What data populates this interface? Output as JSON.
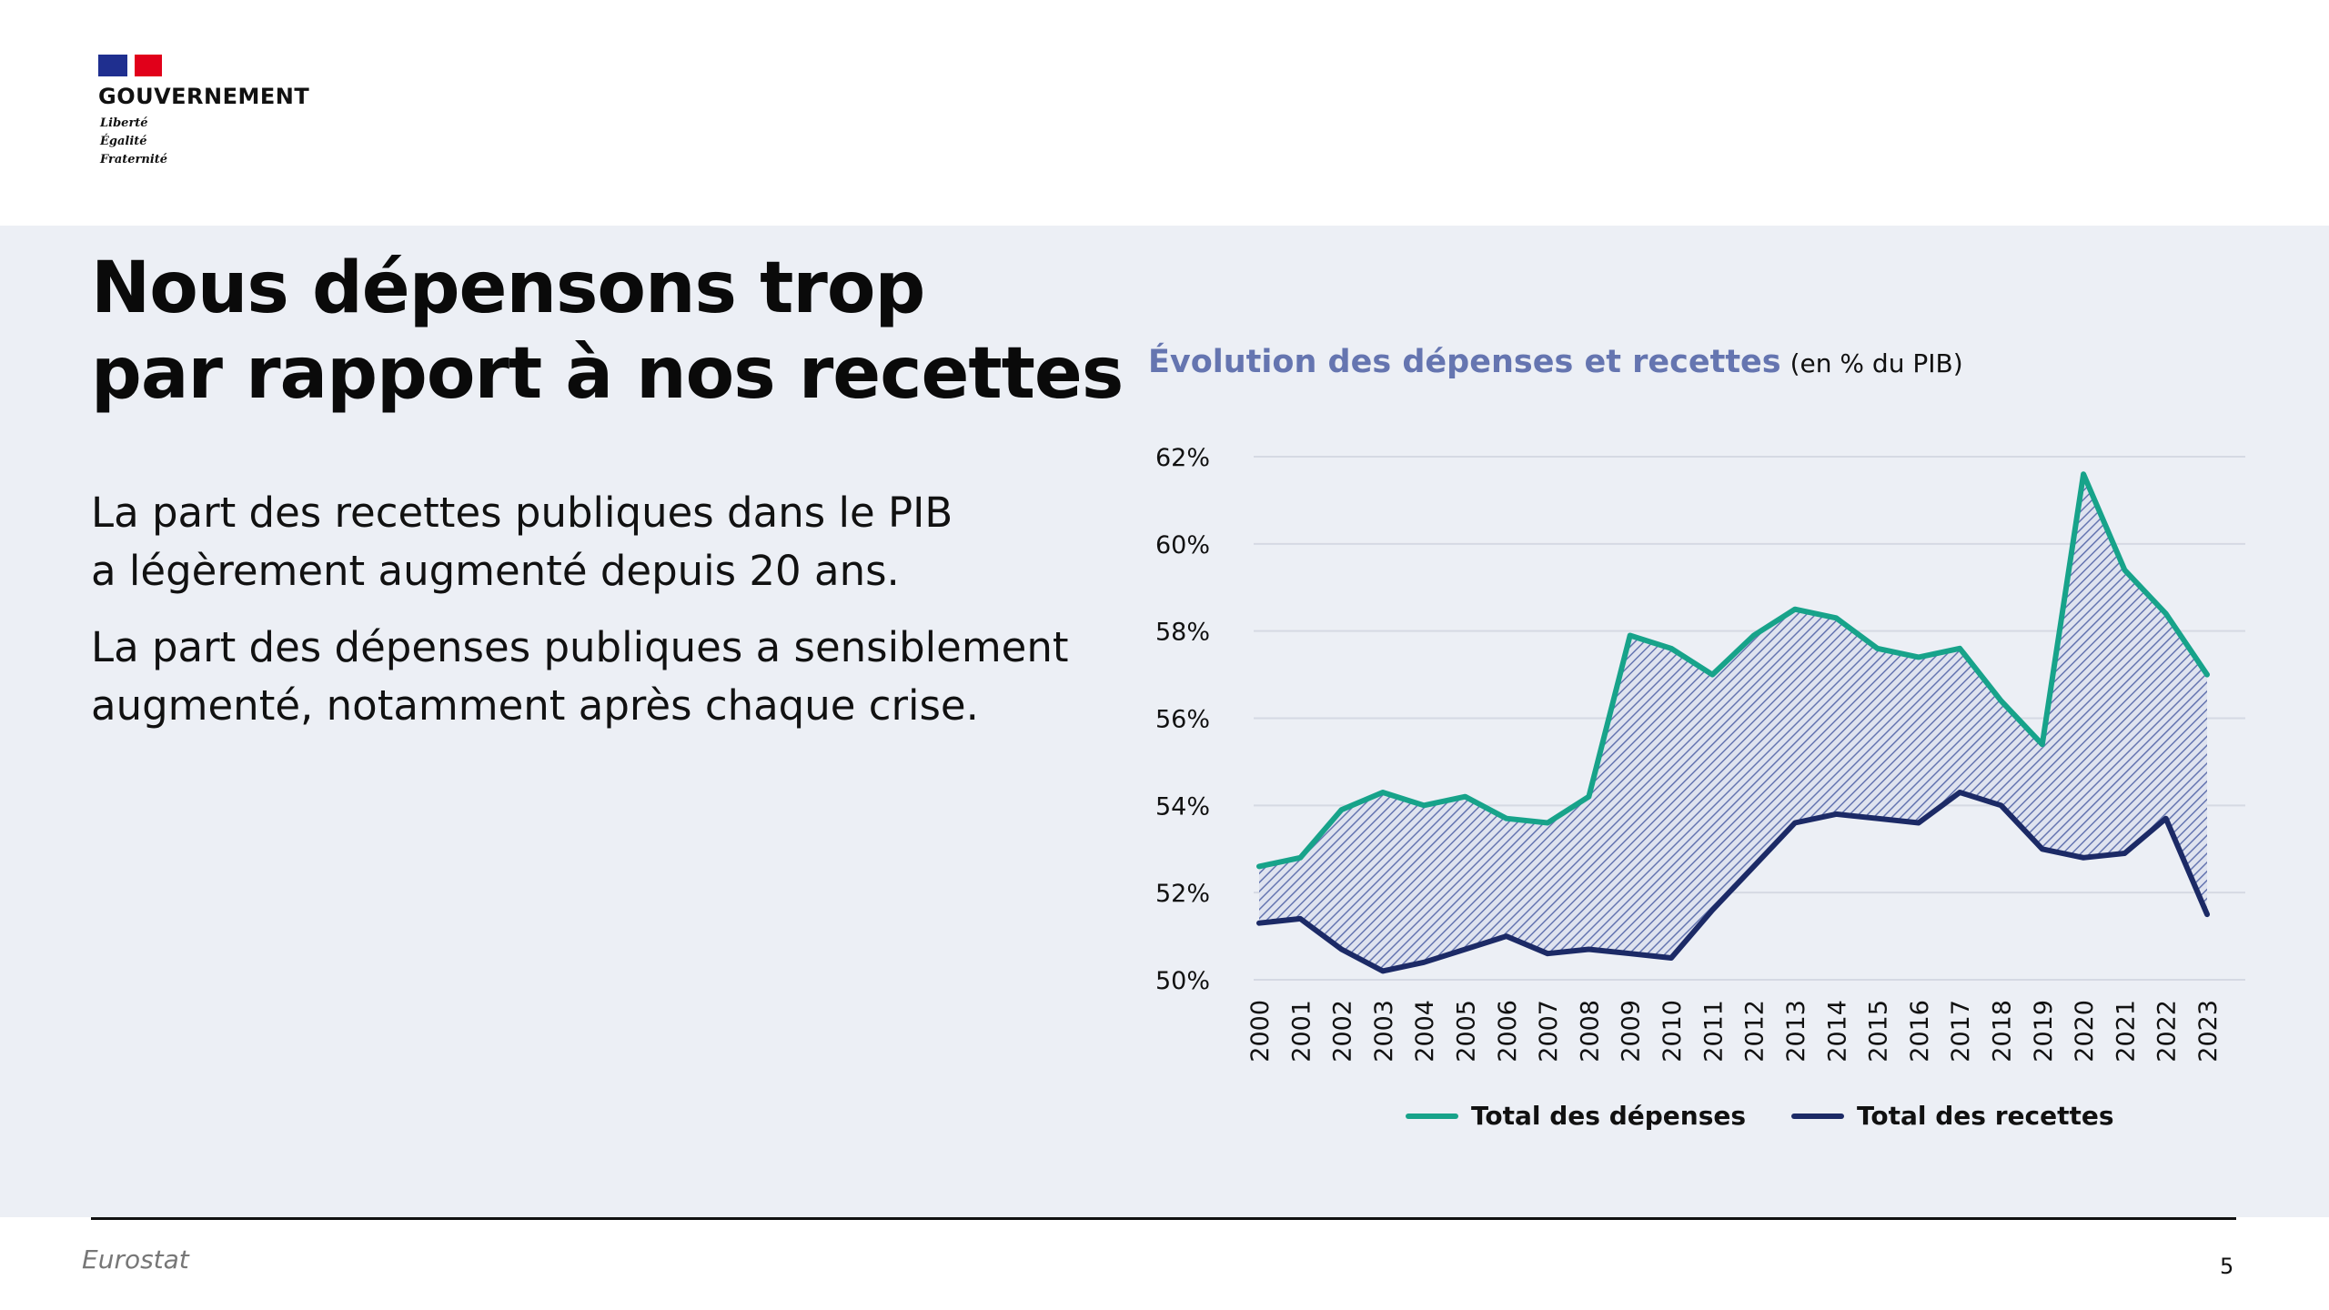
{
  "brand": {
    "name": "GOUVERNEMENT",
    "motto": [
      "Liberté",
      "Égalité",
      "Fraternité"
    ],
    "flag_colors": [
      "#1f2f8f",
      "#ffffff",
      "#e1001a"
    ]
  },
  "slide": {
    "title_lines": [
      "Nous dépensons trop",
      "par rapport à nos recettes"
    ],
    "paragraph1_lines": [
      "La part des recettes publiques dans le PIB",
      "a légèrement augmenté depuis 20 ans."
    ],
    "paragraph2_lines": [
      "La part des dépenses publiques a sensiblement",
      "augmenté, notamment après chaque crise."
    ]
  },
  "chart_data": {
    "type": "line",
    "title": "Évolution des dépenses et recettes",
    "unit_note": "(en % du PIB)",
    "x": [
      "2000",
      "2001",
      "2002",
      "2003",
      "2004",
      "2005",
      "2006",
      "2007",
      "2008",
      "2009",
      "2010",
      "2011",
      "2012",
      "2013",
      "2014",
      "2015",
      "2016",
      "2017",
      "2018",
      "2019",
      "2020",
      "2021",
      "2022",
      "2023"
    ],
    "series": [
      {
        "name": "Total des dépenses",
        "color": "#17a38a",
        "values": [
          52.6,
          52.8,
          53.9,
          54.3,
          54.0,
          54.2,
          53.7,
          53.6,
          54.2,
          57.9,
          57.6,
          57.0,
          57.9,
          58.5,
          58.3,
          57.6,
          57.4,
          57.6,
          56.4,
          55.4,
          61.6,
          59.4,
          58.4,
          57.0
        ]
      },
      {
        "name": "Total des recettes",
        "color": "#1c2a66",
        "values": [
          51.3,
          51.4,
          50.7,
          50.2,
          50.4,
          50.7,
          51.0,
          50.6,
          50.7,
          50.6,
          50.5,
          51.6,
          52.6,
          53.6,
          53.8,
          53.7,
          53.6,
          54.3,
          54.0,
          53.0,
          52.8,
          52.9,
          53.7,
          51.5
        ]
      }
    ],
    "y_ticks": [
      "50%",
      "52%",
      "54%",
      "56%",
      "58%",
      "60%",
      "62%"
    ],
    "ylim": [
      50,
      62
    ],
    "grid": true,
    "area_between_fill": "#6575b0",
    "legend_position": "bottom"
  },
  "footer": {
    "source": "Eurostat",
    "page_number": "5"
  }
}
